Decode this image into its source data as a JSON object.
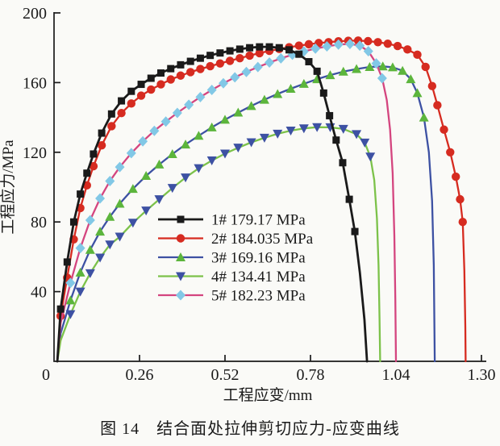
{
  "figure": {
    "caption": "图 14　结合面处拉伸剪切应力-应变曲线"
  },
  "chart_data": {
    "type": "line",
    "title": "",
    "xlabel": "工程应变/mm",
    "ylabel": "工程应力/MPa",
    "xlim": [
      0,
      1.3
    ],
    "ylim": [
      0,
      200
    ],
    "grid": false,
    "legend_position": "inside-center-left",
    "x_ticks": {
      "values": [
        0,
        0.26,
        0.52,
        0.78,
        1.04,
        1.3
      ],
      "labels": [
        "0",
        "0.26",
        "0.52",
        "0.78",
        "1.04",
        "1.30"
      ]
    },
    "y_ticks": {
      "values": [
        40,
        80,
        120,
        160,
        200
      ],
      "labels": [
        "40",
        "80",
        "120",
        "160",
        "200"
      ]
    },
    "axis_color": "#1a1a1a",
    "series": [
      {
        "name": "1#",
        "label": "1# 179.17 MPa",
        "peak_mpa": 179.17,
        "line_color": "#1a1a1a",
        "marker": "square",
        "marker_color": "#1a1a1a",
        "marker_x_range": [
          0.018,
          0.92
        ],
        "points": [
          [
            0.01,
            0
          ],
          [
            0.02,
            30
          ],
          [
            0.04,
            57
          ],
          [
            0.06,
            80
          ],
          [
            0.08,
            96
          ],
          [
            0.1,
            108
          ],
          [
            0.12,
            119
          ],
          [
            0.145,
            131
          ],
          [
            0.175,
            142
          ],
          [
            0.205,
            149.5
          ],
          [
            0.235,
            155
          ],
          [
            0.265,
            159
          ],
          [
            0.295,
            162.5
          ],
          [
            0.325,
            165.5
          ],
          [
            0.355,
            168
          ],
          [
            0.385,
            170.2
          ],
          [
            0.415,
            172.2
          ],
          [
            0.445,
            174
          ],
          [
            0.475,
            175.6
          ],
          [
            0.505,
            177
          ],
          [
            0.535,
            178.2
          ],
          [
            0.565,
            179.2
          ],
          [
            0.595,
            180
          ],
          [
            0.625,
            180.5
          ],
          [
            0.655,
            180.5
          ],
          [
            0.685,
            180
          ],
          [
            0.715,
            178.8
          ],
          [
            0.745,
            176.3
          ],
          [
            0.775,
            172
          ],
          [
            0.8,
            166.5
          ],
          [
            0.82,
            154
          ],
          [
            0.838,
            141
          ],
          [
            0.858,
            127
          ],
          [
            0.878,
            114
          ],
          [
            0.898,
            93
          ],
          [
            0.915,
            74.5
          ],
          [
            0.93,
            51
          ],
          [
            0.944,
            24
          ],
          [
            0.952,
            0
          ]
        ]
      },
      {
        "name": "2#",
        "label": "2# 184.035 MPa",
        "peak_mpa": 184.035,
        "line_color": "#d62b20",
        "marker": "circle",
        "marker_color": "#d62b20",
        "marker_x_range": [
          0.018,
          1.244
        ],
        "points": [
          [
            0.01,
            0
          ],
          [
            0.02,
            26
          ],
          [
            0.04,
            48
          ],
          [
            0.06,
            70
          ],
          [
            0.08,
            88
          ],
          [
            0.1,
            101
          ],
          [
            0.12,
            112
          ],
          [
            0.145,
            124
          ],
          [
            0.175,
            135
          ],
          [
            0.205,
            142.5
          ],
          [
            0.235,
            148
          ],
          [
            0.265,
            152.5
          ],
          [
            0.295,
            156
          ],
          [
            0.325,
            159
          ],
          [
            0.355,
            161.8
          ],
          [
            0.385,
            164
          ],
          [
            0.415,
            166
          ],
          [
            0.445,
            167.8
          ],
          [
            0.475,
            169.4
          ],
          [
            0.505,
            171
          ],
          [
            0.535,
            172.5
          ],
          [
            0.565,
            174
          ],
          [
            0.595,
            175.5
          ],
          [
            0.625,
            176.9
          ],
          [
            0.655,
            178.2
          ],
          [
            0.685,
            179.3
          ],
          [
            0.715,
            180.3
          ],
          [
            0.745,
            181.2
          ],
          [
            0.775,
            182
          ],
          [
            0.805,
            182.7
          ],
          [
            0.835,
            183.2
          ],
          [
            0.865,
            183.7
          ],
          [
            0.895,
            184
          ],
          [
            0.925,
            184.1
          ],
          [
            0.955,
            183.8
          ],
          [
            0.985,
            183.2
          ],
          [
            1.015,
            182.3
          ],
          [
            1.045,
            181
          ],
          [
            1.075,
            179
          ],
          [
            1.105,
            176
          ],
          [
            1.13,
            169
          ],
          [
            1.15,
            158
          ],
          [
            1.166,
            147
          ],
          [
            1.186,
            133
          ],
          [
            1.205,
            120
          ],
          [
            1.222,
            106
          ],
          [
            1.235,
            93
          ],
          [
            1.243,
            80
          ],
          [
            1.248,
            52
          ],
          [
            1.251,
            20
          ],
          [
            1.252,
            0
          ]
        ]
      },
      {
        "name": "3#",
        "label": "3# 169.16 MPa",
        "peak_mpa": 169.16,
        "line_color": "#3d51a3",
        "marker": "triangle-up",
        "marker_color": "#5cb53c",
        "marker_x_range": [
          0.04,
          1.126
        ],
        "points": [
          [
            0.01,
            0
          ],
          [
            0.02,
            16
          ],
          [
            0.05,
            35
          ],
          [
            0.08,
            51
          ],
          [
            0.11,
            64
          ],
          [
            0.14,
            74.5
          ],
          [
            0.17,
            83
          ],
          [
            0.2,
            90.5
          ],
          [
            0.24,
            99
          ],
          [
            0.28,
            106.5
          ],
          [
            0.32,
            113
          ],
          [
            0.36,
            119
          ],
          [
            0.4,
            124.5
          ],
          [
            0.44,
            129.5
          ],
          [
            0.48,
            134.3
          ],
          [
            0.52,
            138.7
          ],
          [
            0.56,
            142.8
          ],
          [
            0.6,
            146.6
          ],
          [
            0.64,
            150.2
          ],
          [
            0.68,
            153.5
          ],
          [
            0.72,
            156.5
          ],
          [
            0.76,
            159.3
          ],
          [
            0.8,
            162
          ],
          [
            0.84,
            164.3
          ],
          [
            0.88,
            166.3
          ],
          [
            0.92,
            167.8
          ],
          [
            0.96,
            169
          ],
          [
            1.0,
            169.3
          ],
          [
            1.03,
            168.8
          ],
          [
            1.06,
            166.8
          ],
          [
            1.085,
            162
          ],
          [
            1.105,
            154
          ],
          [
            1.125,
            140
          ],
          [
            1.14,
            120
          ],
          [
            1.15,
            92
          ],
          [
            1.155,
            55
          ],
          [
            1.158,
            0
          ]
        ]
      },
      {
        "name": "4#",
        "label": "4# 134.41 MPa",
        "peak_mpa": 134.41,
        "line_color": "#7cc24a",
        "marker": "triangle-down",
        "marker_color": "#3d51a3",
        "marker_x_range": [
          0.04,
          0.963
        ],
        "points": [
          [
            0.01,
            0
          ],
          [
            0.02,
            12
          ],
          [
            0.05,
            27
          ],
          [
            0.08,
            40
          ],
          [
            0.11,
            50.5
          ],
          [
            0.14,
            59.5
          ],
          [
            0.17,
            67
          ],
          [
            0.2,
            71.5
          ],
          [
            0.24,
            79.5
          ],
          [
            0.28,
            86.5
          ],
          [
            0.32,
            93
          ],
          [
            0.36,
            99.5
          ],
          [
            0.4,
            105.5
          ],
          [
            0.44,
            110.8
          ],
          [
            0.48,
            115.3
          ],
          [
            0.52,
            119.2
          ],
          [
            0.56,
            122.6
          ],
          [
            0.6,
            125.7
          ],
          [
            0.64,
            128.3
          ],
          [
            0.68,
            130.6
          ],
          [
            0.72,
            132.4
          ],
          [
            0.76,
            133.7
          ],
          [
            0.8,
            134.4
          ],
          [
            0.84,
            134.3
          ],
          [
            0.88,
            133.4
          ],
          [
            0.92,
            130.4
          ],
          [
            0.945,
            125.5
          ],
          [
            0.962,
            117.5
          ],
          [
            0.974,
            104
          ],
          [
            0.982,
            82
          ],
          [
            0.987,
            55
          ],
          [
            0.99,
            25
          ],
          [
            0.992,
            0
          ]
        ]
      },
      {
        "name": "5#",
        "label": "5# 182.23 MPa",
        "peak_mpa": 182.23,
        "line_color": "#d4457f",
        "marker": "diamond",
        "marker_color": "#82c8e6",
        "marker_x_range": [
          0.04,
          1.0
        ],
        "points": [
          [
            0.01,
            0
          ],
          [
            0.02,
            22
          ],
          [
            0.05,
            45
          ],
          [
            0.08,
            65
          ],
          [
            0.11,
            81
          ],
          [
            0.14,
            93.5
          ],
          [
            0.17,
            103.5
          ],
          [
            0.2,
            111.5
          ],
          [
            0.235,
            119.5
          ],
          [
            0.27,
            126.3
          ],
          [
            0.305,
            132.3
          ],
          [
            0.34,
            137.6
          ],
          [
            0.375,
            142.6
          ],
          [
            0.41,
            147.3
          ],
          [
            0.445,
            151.7
          ],
          [
            0.48,
            155.8
          ],
          [
            0.515,
            159.6
          ],
          [
            0.55,
            163
          ],
          [
            0.585,
            166.1
          ],
          [
            0.62,
            168.9
          ],
          [
            0.655,
            171.5
          ],
          [
            0.69,
            173.9
          ],
          [
            0.725,
            176
          ],
          [
            0.76,
            177.9
          ],
          [
            0.795,
            179.5
          ],
          [
            0.83,
            180.8
          ],
          [
            0.865,
            181.8
          ],
          [
            0.9,
            182.2
          ],
          [
            0.93,
            181.2
          ],
          [
            0.956,
            178
          ],
          [
            0.98,
            171
          ],
          [
            0.998,
            162.5
          ],
          [
            1.012,
            150
          ],
          [
            1.022,
            133
          ],
          [
            1.03,
            108
          ],
          [
            1.035,
            72
          ],
          [
            1.038,
            36
          ],
          [
            1.04,
            0
          ]
        ]
      }
    ]
  }
}
